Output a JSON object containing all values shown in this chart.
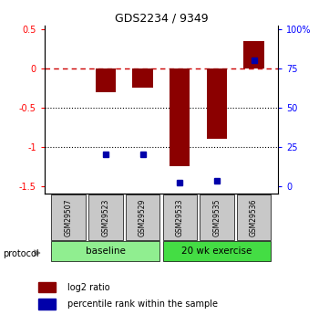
{
  "title": "GDS2234 / 9349",
  "samples": [
    "GSM29507",
    "GSM29523",
    "GSM29529",
    "GSM29533",
    "GSM29535",
    "GSM29536"
  ],
  "log2_ratio": [
    0.0,
    -0.3,
    -0.25,
    -1.25,
    -0.9,
    0.35
  ],
  "percentile_rank": [
    null,
    20.0,
    20.0,
    2.0,
    3.0,
    80.0
  ],
  "bar_color": "#8B0000",
  "dot_color": "#0000AA",
  "ylim_left": [
    -1.6,
    0.55
  ],
  "yticks_left": [
    0.5,
    0.0,
    -0.5,
    -1.0,
    -1.5
  ],
  "ytick_labels_left": [
    "0.5",
    "0",
    "-0.5",
    "-1",
    "-1.5"
  ],
  "yticks_right_pct": [
    100,
    75,
    50,
    25,
    0
  ],
  "baseline_label": "baseline",
  "exercise_label": "20 wk exercise",
  "protocol_label": "protocol",
  "legend_red": "log2 ratio",
  "legend_blue": "percentile rank within the sample",
  "baseline_color": "#90EE90",
  "exercise_color": "#44DD44",
  "sample_box_color": "#C8C8C8",
  "dashed_line_color": "#CC0000",
  "bar_width": 0.55,
  "title_fontsize": 9,
  "tick_fontsize": 7,
  "label_fontsize": 7.5,
  "legend_fontsize": 7
}
